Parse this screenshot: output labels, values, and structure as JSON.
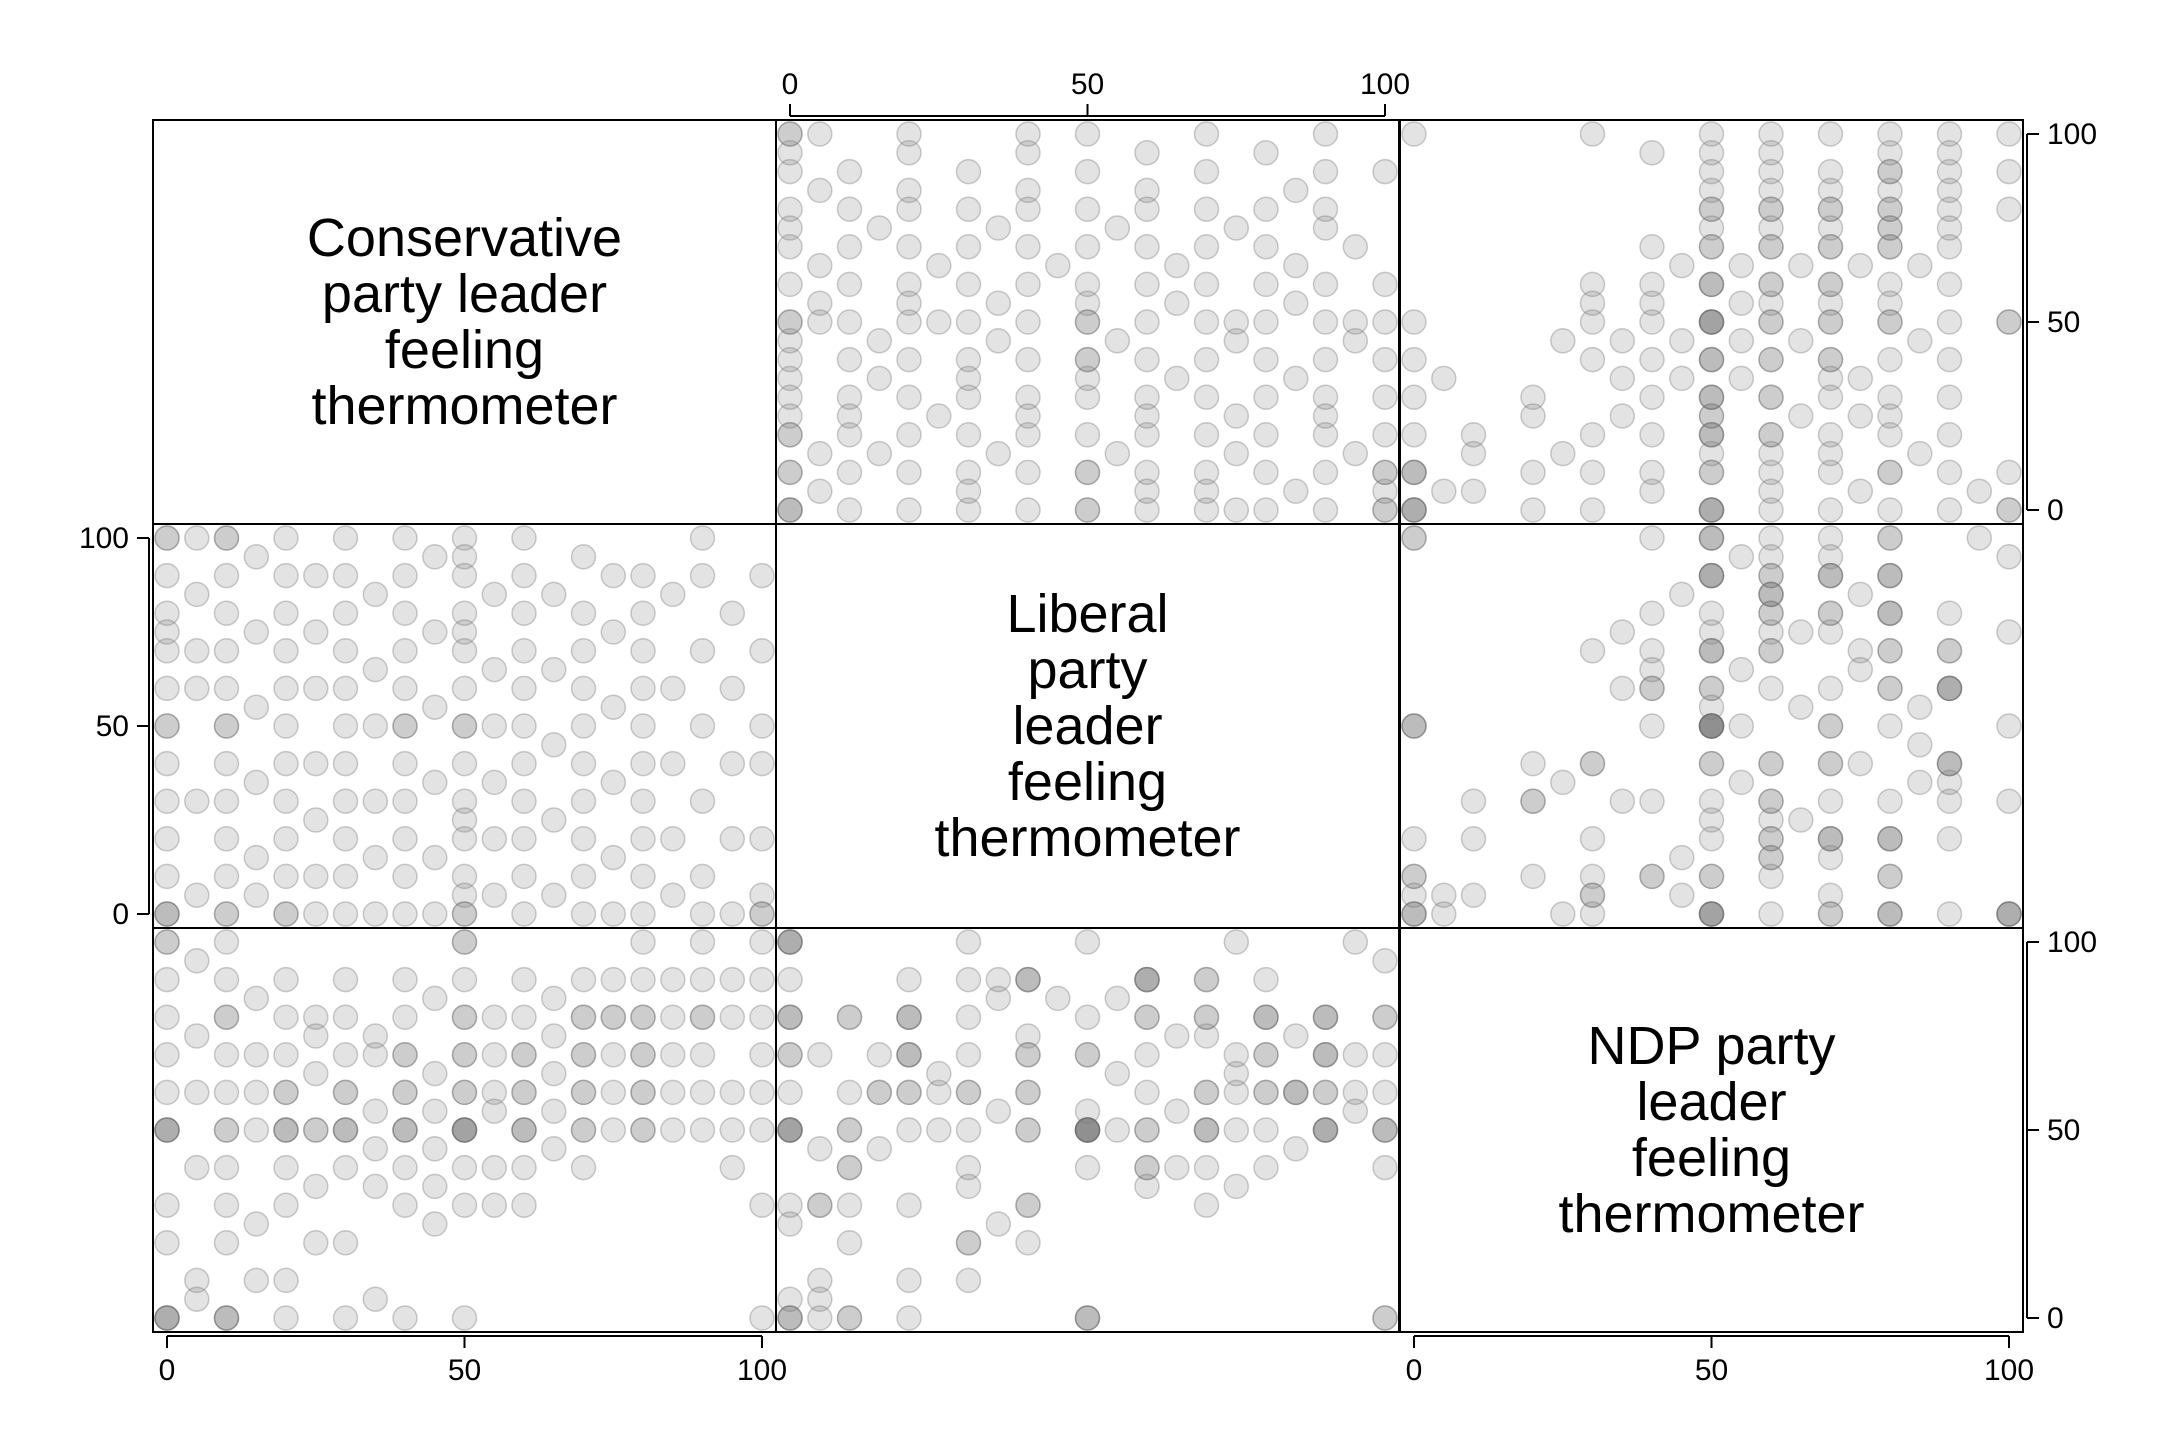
{
  "chart_data": {
    "type": "scatter-matrix",
    "variables": [
      {
        "key": "con",
        "label_lines": [
          "Conservative",
          "party leader",
          "feeling",
          "thermometer"
        ]
      },
      {
        "key": "lib",
        "label_lines": [
          "Liberal",
          "party",
          "leader",
          "feeling",
          "thermometer"
        ]
      },
      {
        "key": "ndp",
        "label_lines": [
          "NDP party",
          "leader",
          "feeling",
          "thermometer"
        ]
      }
    ],
    "axis_range": [
      0,
      100
    ],
    "ticks": [
      0,
      50,
      100
    ],
    "tick_labels": [
      "0",
      "50",
      "100"
    ],
    "marker": {
      "shape": "circle",
      "fill": "#7f7f7f",
      "stroke": "#6f6f6f",
      "fill_opacity": 0.22,
      "stroke_opacity": 0.35
    },
    "points": [
      [
        0,
        100,
        0
      ],
      [
        0,
        90,
        80
      ],
      [
        0,
        80,
        60
      ],
      [
        0,
        70,
        90
      ],
      [
        0,
        60,
        50
      ],
      [
        0,
        50,
        50
      ],
      [
        0,
        40,
        30
      ],
      [
        0,
        30,
        20
      ],
      [
        0,
        20,
        70
      ],
      [
        0,
        10,
        0
      ],
      [
        0,
        0,
        0
      ],
      [
        0,
        100,
        50
      ],
      [
        0,
        75,
        100
      ],
      [
        0,
        50,
        0
      ],
      [
        0,
        0,
        50
      ],
      [
        0,
        0,
        100
      ],
      [
        5,
        100,
        95
      ],
      [
        5,
        85,
        60
      ],
      [
        5,
        60,
        40
      ],
      [
        5,
        30,
        10
      ],
      [
        5,
        5,
        5
      ],
      [
        5,
        70,
        75
      ],
      [
        10,
        100,
        80
      ],
      [
        10,
        90,
        50
      ],
      [
        10,
        80,
        70
      ],
      [
        10,
        70,
        30
      ],
      [
        10,
        60,
        60
      ],
      [
        10,
        50,
        50
      ],
      [
        10,
        40,
        90
      ],
      [
        10,
        30,
        20
      ],
      [
        10,
        20,
        0
      ],
      [
        10,
        10,
        40
      ],
      [
        10,
        0,
        0
      ],
      [
        10,
        0,
        80
      ],
      [
        10,
        50,
        100
      ],
      [
        10,
        100,
        0
      ],
      [
        15,
        95,
        70
      ],
      [
        15,
        75,
        50
      ],
      [
        15,
        55,
        85
      ],
      [
        15,
        35,
        25
      ],
      [
        15,
        15,
        60
      ],
      [
        15,
        5,
        10
      ],
      [
        20,
        100,
        50
      ],
      [
        20,
        90,
        70
      ],
      [
        20,
        80,
        60
      ],
      [
        20,
        70,
        80
      ],
      [
        20,
        60,
        50
      ],
      [
        20,
        50,
        40
      ],
      [
        20,
        40,
        30
      ],
      [
        20,
        30,
        50
      ],
      [
        20,
        20,
        10
      ],
      [
        20,
        10,
        60
      ],
      [
        20,
        0,
        0
      ],
      [
        20,
        0,
        90
      ],
      [
        25,
        90,
        50
      ],
      [
        25,
        75,
        65
      ],
      [
        25,
        60,
        35
      ],
      [
        25,
        40,
        75
      ],
      [
        25,
        25,
        50
      ],
      [
        25,
        10,
        20
      ],
      [
        25,
        0,
        80
      ],
      [
        30,
        100,
        40
      ],
      [
        30,
        90,
        60
      ],
      [
        30,
        80,
        70
      ],
      [
        30,
        70,
        50
      ],
      [
        30,
        60,
        90
      ],
      [
        30,
        50,
        50
      ],
      [
        30,
        40,
        20
      ],
      [
        30,
        30,
        60
      ],
      [
        30,
        20,
        80
      ],
      [
        30,
        10,
        0
      ],
      [
        30,
        0,
        50
      ],
      [
        35,
        85,
        45
      ],
      [
        35,
        65,
        75
      ],
      [
        35,
        50,
        55
      ],
      [
        35,
        30,
        35
      ],
      [
        35,
        15,
        70
      ],
      [
        35,
        0,
        5
      ],
      [
        40,
        100,
        60
      ],
      [
        40,
        90,
        80
      ],
      [
        40,
        80,
        50
      ],
      [
        40,
        70,
        40
      ],
      [
        40,
        60,
        70
      ],
      [
        40,
        50,
        50
      ],
      [
        40,
        40,
        60
      ],
      [
        40,
        30,
        90
      ],
      [
        40,
        20,
        30
      ],
      [
        40,
        10,
        50
      ],
      [
        40,
        0,
        70
      ],
      [
        40,
        50,
        0
      ],
      [
        45,
        95,
        55
      ],
      [
        45,
        75,
        35
      ],
      [
        45,
        55,
        65
      ],
      [
        45,
        35,
        85
      ],
      [
        45,
        15,
        45
      ],
      [
        45,
        0,
        25
      ],
      [
        50,
        100,
        50
      ],
      [
        50,
        95,
        100
      ],
      [
        50,
        90,
        70
      ],
      [
        50,
        80,
        80
      ],
      [
        50,
        75,
        60
      ],
      [
        50,
        70,
        50
      ],
      [
        50,
        60,
        90
      ],
      [
        50,
        50,
        50
      ],
      [
        50,
        50,
        0
      ],
      [
        50,
        40,
        70
      ],
      [
        50,
        30,
        40
      ],
      [
        50,
        25,
        60
      ],
      [
        50,
        20,
        80
      ],
      [
        50,
        10,
        50
      ],
      [
        50,
        5,
        30
      ],
      [
        50,
        0,
        50
      ],
      [
        50,
        0,
        100
      ],
      [
        55,
        85,
        60
      ],
      [
        55,
        65,
        40
      ],
      [
        55,
        50,
        80
      ],
      [
        55,
        35,
        55
      ],
      [
        55,
        20,
        70
      ],
      [
        55,
        5,
        30
      ],
      [
        60,
        100,
        70
      ],
      [
        60,
        90,
        50
      ],
      [
        60,
        80,
        80
      ],
      [
        60,
        70,
        60
      ],
      [
        60,
        60,
        40
      ],
      [
        60,
        50,
        50
      ],
      [
        60,
        40,
        90
      ],
      [
        60,
        30,
        70
      ],
      [
        60,
        20,
        50
      ],
      [
        60,
        10,
        30
      ],
      [
        60,
        0,
        60
      ],
      [
        65,
        85,
        75
      ],
      [
        65,
        65,
        55
      ],
      [
        65,
        45,
        85
      ],
      [
        65,
        25,
        65
      ],
      [
        65,
        5,
        45
      ],
      [
        70,
        95,
        60
      ],
      [
        70,
        80,
        80
      ],
      [
        70,
        70,
        50
      ],
      [
        70,
        60,
        90
      ],
      [
        70,
        50,
        70
      ],
      [
        70,
        40,
        50
      ],
      [
        70,
        30,
        80
      ],
      [
        70,
        20,
        60
      ],
      [
        70,
        10,
        40
      ],
      [
        70,
        0,
        70
      ],
      [
        75,
        90,
        80
      ],
      [
        75,
        75,
        70
      ],
      [
        75,
        55,
        50
      ],
      [
        75,
        35,
        90
      ],
      [
        75,
        15,
        60
      ],
      [
        75,
        0,
        80
      ],
      [
        80,
        90,
        70
      ],
      [
        80,
        80,
        90
      ],
      [
        80,
        70,
        60
      ],
      [
        80,
        60,
        80
      ],
      [
        80,
        50,
        50
      ],
      [
        80,
        40,
        70
      ],
      [
        80,
        30,
        100
      ],
      [
        80,
        20,
        60
      ],
      [
        80,
        10,
        80
      ],
      [
        80,
        0,
        50
      ],
      [
        85,
        85,
        60
      ],
      [
        85,
        60,
        80
      ],
      [
        85,
        40,
        50
      ],
      [
        85,
        20,
        90
      ],
      [
        85,
        5,
        70
      ],
      [
        90,
        100,
        80
      ],
      [
        90,
        90,
        50
      ],
      [
        90,
        70,
        90
      ],
      [
        90,
        50,
        70
      ],
      [
        90,
        30,
        60
      ],
      [
        90,
        10,
        80
      ],
      [
        90,
        0,
        100
      ],
      [
        95,
        80,
        40
      ],
      [
        95,
        60,
        90
      ],
      [
        95,
        40,
        60
      ],
      [
        95,
        20,
        80
      ],
      [
        95,
        0,
        50
      ],
      [
        100,
        90,
        60
      ],
      [
        100,
        70,
        80
      ],
      [
        100,
        50,
        50
      ],
      [
        100,
        40,
        90
      ],
      [
        100,
        20,
        70
      ],
      [
        100,
        0,
        100
      ],
      [
        100,
        5,
        0
      ],
      [
        100,
        0,
        30
      ]
    ]
  }
}
